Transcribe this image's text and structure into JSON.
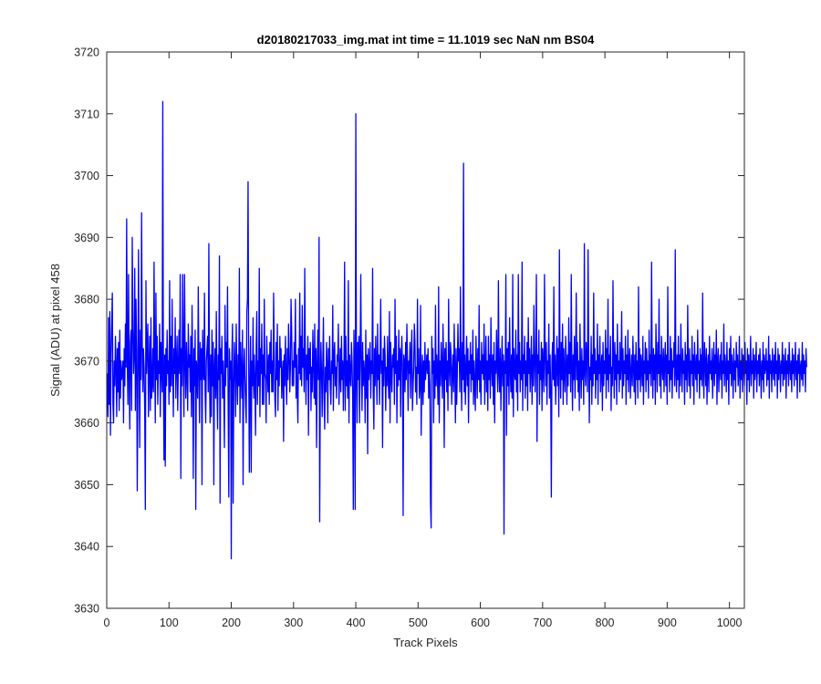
{
  "chart_data": {
    "type": "line",
    "title": "d20180217033_img.mat int time = 11.1019 sec  NaN nm BS04",
    "xlabel": "Track Pixels",
    "ylabel": "Signal (ADU) at pixel 458",
    "xlim": [
      0,
      1024
    ],
    "ylim": [
      3630,
      3720
    ],
    "x_ticks": [
      "0",
      "100",
      "200",
      "300",
      "400",
      "500",
      "600",
      "700",
      "800",
      "900",
      "1000"
    ],
    "y_ticks": [
      "3630",
      "3640",
      "3650",
      "3660",
      "3670",
      "3680",
      "3690",
      "3700",
      "3710",
      "3720"
    ],
    "grid": false,
    "line_color": "#0000ff",
    "series": [
      {
        "x_start": 1,
        "x_step": 1,
        "values": [
          3668,
          3661,
          3677,
          3663,
          3678,
          3658,
          3671,
          3676,
          3681,
          3663,
          3660,
          3670,
          3666,
          3674,
          3669,
          3661,
          3672,
          3665,
          3673,
          3662,
          3675,
          3664,
          3670,
          3667,
          3668,
          3670,
          3660,
          3672,
          3666,
          3676,
          3669,
          3693,
          3670,
          3663,
          3684,
          3668,
          3659,
          3673,
          3675,
          3662,
          3690,
          3676,
          3668,
          3671,
          3685,
          3662,
          3680,
          3672,
          3649,
          3665,
          3688,
          3670,
          3656,
          3675,
          3667,
          3694,
          3673,
          3665,
          3672,
          3669,
          3662,
          3646,
          3683,
          3668,
          3673,
          3676,
          3661,
          3669,
          3674,
          3662,
          3677,
          3664,
          3666,
          3672,
          3665,
          3686,
          3671,
          3660,
          3681,
          3667,
          3674,
          3663,
          3670,
          3668,
          3676,
          3661,
          3673,
          3669,
          3665,
          3712,
          3667,
          3654,
          3671,
          3653,
          3672,
          3666,
          3675,
          3668,
          3670,
          3663,
          3683,
          3665,
          3674,
          3666,
          3680,
          3669,
          3661,
          3672,
          3668,
          3677,
          3664,
          3670,
          3674,
          3662,
          3669,
          3675,
          3668,
          3684,
          3651,
          3672,
          3666,
          3684,
          3671,
          3661,
          3684,
          3670,
          3664,
          3673,
          3668,
          3662,
          3676,
          3669,
          3671,
          3665,
          3674,
          3661,
          3679,
          3669,
          3651,
          3672,
          3666,
          3675,
          3646,
          3670,
          3668,
          3664,
          3682,
          3669,
          3660,
          3673,
          3667,
          3672,
          3650,
          3675,
          3668,
          3667,
          3681,
          3665,
          3660,
          3670,
          3672,
          3674,
          3665,
          3689,
          3668,
          3660,
          3671,
          3661,
          3675,
          3666,
          3673,
          3650,
          3669,
          3672,
          3664,
          3678,
          3666,
          3659,
          3671,
          3667,
          3687,
          3647,
          3672,
          3668,
          3674,
          3664,
          3670,
          3665,
          3656,
          3679,
          3666,
          3673,
          3669,
          3682,
          3663,
          3648,
          3672,
          3667,
          3670,
          3638,
          3671,
          3676,
          3647,
          3665,
          3673,
          3669,
          3661,
          3676,
          3668,
          3663,
          3671,
          3666,
          3685,
          3660,
          3673,
          3668,
          3664,
          3675,
          3650,
          3669,
          3672,
          3667,
          3663,
          3660,
          3678,
          3680,
          3699,
          3669,
          3652,
          3667,
          3674,
          3652,
          3670,
          3666,
          3677,
          3664,
          3671,
          3667,
          3658,
          3672,
          3678,
          3663,
          3670,
          3666,
          3685,
          3661,
          3672,
          3668,
          3676,
          3663,
          3671,
          3663,
          3680,
          3668,
          3667,
          3660,
          3674,
          3669,
          3665,
          3671,
          3663,
          3673,
          3668,
          3675,
          3665,
          3670,
          3665,
          3681,
          3671,
          3664,
          3661,
          3673,
          3667,
          3676,
          3662,
          3670,
          3666,
          3674,
          3669,
          3672,
          3664,
          3668,
          3670,
          3657,
          3671,
          3666,
          3674,
          3668,
          3663,
          3672,
          3667,
          3676,
          3671,
          3665,
          3669,
          3680,
          3675,
          3666,
          3670,
          3666,
          3673,
          3669,
          3680,
          3664,
          3671,
          3665,
          3660,
          3672,
          3668,
          3681,
          3667,
          3674,
          3666,
          3679,
          3669,
          3672,
          3665,
          3685,
          3670,
          3663,
          3671,
          3667,
          3674,
          3658,
          3672,
          3668,
          3673,
          3662,
          3669,
          3665,
          3675,
          3670,
          3664,
          3676,
          3663,
          3672,
          3656,
          3669,
          3675,
          3667,
          3690,
          3644,
          3666,
          3673,
          3668,
          3661,
          3670,
          3677,
          3664,
          3659,
          3669,
          3665,
          3673,
          3669,
          3660,
          3672,
          3667,
          3674,
          3666,
          3663,
          3670,
          3668,
          3679,
          3662,
          3671,
          3673,
          3666,
          3669,
          3664,
          3671,
          3670,
          3676,
          3663,
          3668,
          3672,
          3665,
          3674,
          3667,
          3670,
          3662,
          3669,
          3686,
          3662,
          3674,
          3666,
          3670,
          3664,
          3683,
          3660,
          3671,
          3668,
          3666,
          3673,
          3670,
          3664,
          3646,
          3675,
          3669,
          3646,
          3710,
          3668,
          3660,
          3673,
          3667,
          3674,
          3660,
          3671,
          3684,
          3669,
          3662,
          3673,
          3666,
          3670,
          3668,
          3660,
          3675,
          3664,
          3671,
          3655,
          3672,
          3667,
          3669,
          3673,
          3664,
          3670,
          3668,
          3685,
          3665,
          3659,
          3672,
          3666,
          3674,
          3669,
          3663,
          3676,
          3667,
          3671,
          3663,
          3670,
          3680,
          3668,
          3670,
          3656,
          3672,
          3666,
          3674,
          3671,
          3662,
          3669,
          3666,
          3674,
          3667,
          3664,
          3678,
          3660,
          3673,
          3668,
          3665,
          3671,
          3669,
          3672,
          3663,
          3680,
          3668,
          3674,
          3660,
          3670,
          3666,
          3675,
          3667,
          3672,
          3661,
          3671,
          3674,
          3668,
          3645,
          3671,
          3670,
          3665,
          3673,
          3667,
          3676,
          3670,
          3662,
          3670,
          3668,
          3673,
          3664,
          3671,
          3675,
          3662,
          3666,
          3669,
          3676,
          3673,
          3665,
          3669,
          3663,
          3680,
          3668,
          3672,
          3664,
          3666,
          3679,
          3658,
          3668,
          3671,
          3663,
          3670,
          3665,
          3673,
          3667,
          3669,
          3671,
          3668,
          3672,
          3664,
          3670,
          3666,
          3647,
          3643,
          3674,
          3668,
          3672,
          3660,
          3670,
          3664,
          3679,
          3666,
          3671,
          3668,
          3663,
          3682,
          3660,
          3670,
          3666,
          3673,
          3669,
          3664,
          3676,
          3670,
          3656,
          3672,
          3667,
          3673,
          3665,
          3670,
          3662,
          3680,
          3669,
          3666,
          3673,
          3671,
          3663,
          3668,
          3671,
          3665,
          3676,
          3669,
          3660,
          3672,
          3663,
          3668,
          3676,
          3670,
          3672,
          3665,
          3682,
          3669,
          3662,
          3673,
          3667,
          3702,
          3665,
          3671,
          3663,
          3669,
          3674,
          3666,
          3672,
          3660,
          3670,
          3668,
          3673,
          3665,
          3671,
          3667,
          3675,
          3663,
          3670,
          3666,
          3662,
          3674,
          3669,
          3664,
          3672,
          3667,
          3679,
          3665,
          3670,
          3663,
          3673,
          3668,
          3671,
          3667,
          3676,
          3663,
          3669,
          3674,
          3665,
          3670,
          3662,
          3674,
          3667,
          3671,
          3664,
          3677,
          3669,
          3666,
          3671,
          3663,
          3673,
          3660,
          3670,
          3668,
          3675,
          3669,
          3665,
          3683,
          3668,
          3665,
          3672,
          3662,
          3669,
          3674,
          3666,
          3671,
          3642,
          3670,
          3668,
          3684,
          3658,
          3672,
          3666,
          3673,
          3663,
          3677,
          3669,
          3665,
          3671,
          3664,
          3684,
          3661,
          3672,
          3668,
          3667,
          3675,
          3665,
          3671,
          3662,
          3684,
          3668,
          3673,
          3665,
          3670,
          3667,
          3686,
          3662,
          3671,
          3668,
          3674,
          3664,
          3670,
          3666,
          3673,
          3662,
          3677,
          3668,
          3672,
          3665,
          3669,
          3674,
          3663,
          3671,
          3666,
          3679,
          3670,
          3665,
          3672,
          3684,
          3657,
          3671,
          3668,
          3675,
          3663,
          3670,
          3667,
          3673,
          3662,
          3672,
          3669,
          3665,
          3684,
          3671,
          3666,
          3673,
          3663,
          3670,
          3668,
          3676,
          3664,
          3671,
          3665,
          3648,
          3670,
          3673,
          3667,
          3682,
          3666,
          3671,
          3663,
          3669,
          3674,
          3666,
          3672,
          3661,
          3688,
          3669,
          3664,
          3673,
          3667,
          3676,
          3663,
          3672,
          3668,
          3665,
          3674,
          3670,
          3663,
          3671,
          3666,
          3677,
          3668,
          3673,
          3665,
          3684,
          3669,
          3662,
          3671,
          3667,
          3674,
          3664,
          3670,
          3681,
          3667,
          3673,
          3665,
          3670,
          3662,
          3676,
          3669,
          3664,
          3672,
          3667,
          3670,
          3663,
          3689,
          3668,
          3666,
          3673,
          3670,
          3665,
          3688,
          3672,
          3660,
          3669,
          3667,
          3674,
          3663,
          3671,
          3666,
          3681,
          3668,
          3672,
          3664,
          3670,
          3667,
          3676,
          3663,
          3671,
          3668,
          3674,
          3665,
          3669,
          3671,
          3662,
          3673,
          3666,
          3670,
          3668,
          3675,
          3664,
          3672,
          3667,
          3680,
          3665,
          3671,
          3668,
          3674,
          3662,
          3669,
          3666,
          3683,
          3670,
          3664,
          3673,
          3667,
          3671,
          3663,
          3676,
          3668,
          3670,
          3665,
          3673,
          3667,
          3669,
          3678,
          3664,
          3672,
          3666,
          3670,
          3668,
          3674,
          3663,
          3671,
          3667,
          3675,
          3665,
          3670,
          3672,
          3664,
          3668,
          3671,
          3666,
          3674,
          3669,
          3665,
          3671,
          3663,
          3673,
          3667,
          3670,
          3664,
          3682,
          3667,
          3672,
          3665,
          3671,
          3669,
          3666,
          3674,
          3663,
          3670,
          3668,
          3673,
          3665,
          3672,
          3667,
          3670,
          3664,
          3675,
          3668,
          3671,
          3666,
          3686,
          3669,
          3664,
          3672,
          3667,
          3671,
          3663,
          3676,
          3670,
          3665,
          3673,
          3668,
          3680,
          3666,
          3671,
          3664,
          3674,
          3669,
          3667,
          3672,
          3665,
          3670,
          3673,
          3666,
          3671,
          3663,
          3682,
          3668,
          3670,
          3665,
          3674,
          3667,
          3672,
          3664,
          3670,
          3669,
          3673,
          3666,
          3688,
          3668,
          3665,
          3671,
          3667,
          3674,
          3664,
          3671,
          3666,
          3676,
          3669,
          3665,
          3672,
          3668,
          3670,
          3663,
          3673,
          3667,
          3671,
          3665,
          3679,
          3669,
          3666,
          3672,
          3664,
          3670,
          3668,
          3674,
          3666,
          3671,
          3663,
          3673,
          3669,
          3667,
          3671,
          3665,
          3675,
          3668,
          3670,
          3664,
          3672,
          3667,
          3671,
          3666,
          3681,
          3668,
          3664,
          3673,
          3670,
          3666,
          3672,
          3663,
          3669,
          3671,
          3665,
          3674,
          3668,
          3670,
          3667,
          3672,
          3664,
          3669,
          3673,
          3666,
          3671,
          3668,
          3675,
          3663,
          3670,
          3672,
          3665,
          3669,
          3671,
          3667,
          3673,
          3664,
          3670,
          3668,
          3676,
          3666,
          3671,
          3669,
          3665,
          3673,
          3667,
          3670,
          3663,
          3672,
          3668,
          3674,
          3666,
          3671,
          3669,
          3664,
          3672,
          3667,
          3670,
          3665,
          3673,
          3669,
          3671,
          3666,
          3668,
          3674,
          3664,
          3670,
          3667,
          3672,
          3665,
          3671,
          3669,
          3666,
          3673,
          3668,
          3670,
          3663,
          3672,
          3667,
          3671,
          3665,
          3669,
          3674,
          3666,
          3670,
          3668,
          3672,
          3664,
          3671,
          3667,
          3669,
          3673,
          3665,
          3670,
          3668,
          3671,
          3666,
          3672,
          3669,
          3664,
          3670,
          3667,
          3673,
          3665,
          3671,
          3668,
          3669,
          3672,
          3666,
          3670,
          3667,
          3674,
          3664,
          3671,
          3668,
          3670,
          3665,
          3672,
          3669,
          3667,
          3671,
          3666,
          3673,
          3668,
          3670,
          3664,
          3672,
          3667,
          3671,
          3669,
          3665,
          3670,
          3668,
          3673,
          3666,
          3671,
          3667,
          3669,
          3672,
          3664,
          3670,
          3668,
          3671,
          3666,
          3673,
          3669,
          3667,
          3670,
          3665,
          3672,
          3668,
          3671,
          3666,
          3669,
          3673,
          3667,
          3670,
          3664,
          3671,
          3668,
          3672,
          3665,
          3669,
          3670,
          3667,
          3673,
          3666,
          3671,
          3668,
          3670,
          3665,
          3672,
          3669
        ]
      }
    ]
  }
}
